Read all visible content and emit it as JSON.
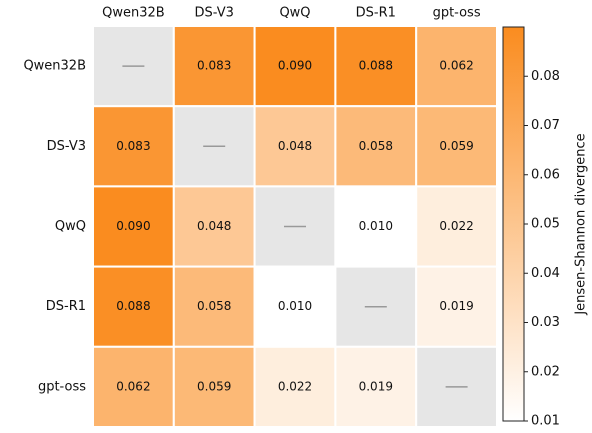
{
  "chart_data": {
    "type": "heatmap",
    "x_categories": [
      "Qwen32B",
      "DS-V3",
      "QwQ",
      "DS-R1",
      "gpt-oss"
    ],
    "y_categories": [
      "Qwen32B",
      "DS-V3",
      "QwQ",
      "DS-R1",
      "gpt-oss"
    ],
    "values": [
      [
        null,
        0.083,
        0.09,
        0.088,
        0.062
      ],
      [
        0.083,
        null,
        0.048,
        0.058,
        0.059
      ],
      [
        0.09,
        0.048,
        null,
        0.01,
        0.022
      ],
      [
        0.088,
        0.058,
        0.01,
        null,
        0.019
      ],
      [
        0.062,
        0.059,
        0.022,
        0.019,
        null
      ]
    ],
    "value_labels": [
      [
        null,
        "0.083",
        "0.090",
        "0.088",
        "0.062"
      ],
      [
        "0.083",
        null,
        "0.048",
        "0.058",
        "0.059"
      ],
      [
        "0.090",
        "0.048",
        null,
        "0.010",
        "0.022"
      ],
      [
        "0.088",
        "0.058",
        "0.010",
        null,
        "0.019"
      ],
      [
        "0.062",
        "0.059",
        "0.022",
        "0.019",
        null
      ]
    ],
    "colors": [
      "#ffffff",
      "#fa8c1f"
    ],
    "missing_color": "#e6e6e6",
    "clim": [
      0.01,
      0.09
    ],
    "cticks": [
      0.01,
      0.02,
      0.03,
      0.04,
      0.05,
      0.06,
      0.07,
      0.08
    ],
    "colorbar_label": "Jensen-Shannon divergence"
  }
}
